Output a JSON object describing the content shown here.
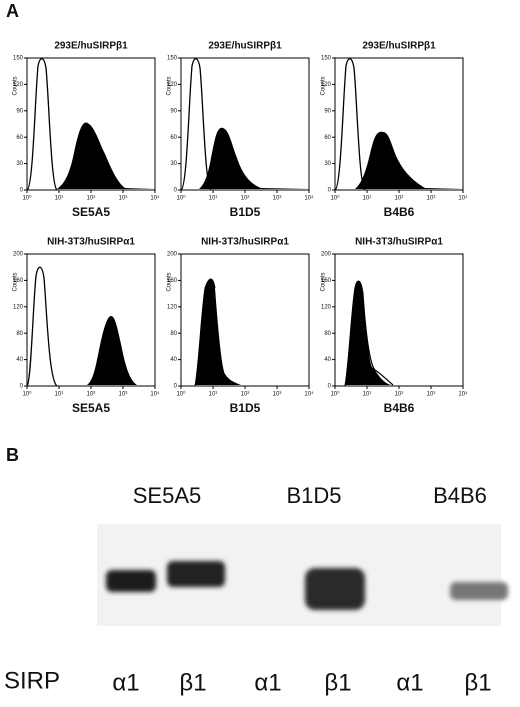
{
  "figure": {
    "panel_a_label": "A",
    "panel_b_label": "B",
    "histograms": [
      {
        "type": "histogram",
        "title": "293E/huSIRPβ1",
        "y_label": "Counts",
        "x_label": "SE5A5",
        "ylim": [
          0,
          150
        ],
        "yticks": [
          0,
          30,
          60,
          90,
          120,
          150
        ],
        "xlim": [
          1,
          10000
        ],
        "log_x": true,
        "xticks": [
          {
            "value": 1,
            "label": "10⁰"
          },
          {
            "value": 10,
            "label": "10¹"
          },
          {
            "value": 100,
            "label": "10²"
          },
          {
            "value": 1000,
            "label": "10³"
          },
          {
            "value": 10000,
            "label": "10⁴"
          }
        ]
      },
      {
        "type": "histogram",
        "title": "293E/huSIRPβ1",
        "y_label": "Counts",
        "x_label": "B1D5",
        "ylim": [
          0,
          150
        ],
        "yticks": [
          0,
          30,
          60,
          90,
          120,
          150
        ],
        "xlim": [
          1,
          10000
        ],
        "log_x": true,
        "xticks": [
          {
            "value": 1,
            "label": "10⁰"
          },
          {
            "value": 10,
            "label": "10¹"
          },
          {
            "value": 100,
            "label": "10²"
          },
          {
            "value": 1000,
            "label": "10³"
          },
          {
            "value": 10000,
            "label": "10⁴"
          }
        ]
      },
      {
        "type": "histogram",
        "title": "293E/huSIRPβ1",
        "y_label": "Counts",
        "x_label": "B4B6",
        "ylim": [
          0,
          150
        ],
        "yticks": [
          0,
          30,
          60,
          90,
          120,
          150
        ],
        "xlim": [
          1,
          10000
        ],
        "log_x": true,
        "xticks": [
          {
            "value": 1,
            "label": "10⁰"
          },
          {
            "value": 10,
            "label": "10¹"
          },
          {
            "value": 100,
            "label": "10²"
          },
          {
            "value": 1000,
            "label": "10³"
          },
          {
            "value": 10000,
            "label": "10⁴"
          }
        ]
      },
      {
        "type": "histogram",
        "title": "NIH-3T3/huSIRPα1",
        "y_label": "Counts",
        "x_label": "SE5A5",
        "ylim": [
          0,
          200
        ],
        "yticks": [
          0,
          40,
          80,
          120,
          160,
          200
        ],
        "xlim": [
          1,
          10000
        ],
        "log_x": true,
        "xticks": [
          {
            "value": 1,
            "label": "10⁰"
          },
          {
            "value": 10,
            "label": "10¹"
          },
          {
            "value": 100,
            "label": "10²"
          },
          {
            "value": 1000,
            "label": "10³"
          },
          {
            "value": 10000,
            "label": "10⁴"
          }
        ]
      },
      {
        "type": "histogram",
        "title": "NIH-3T3/huSIRPα1",
        "y_label": "Counts",
        "x_label": "B1D5",
        "ylim": [
          0,
          200
        ],
        "yticks": [
          0,
          40,
          80,
          120,
          160,
          200
        ],
        "xlim": [
          1,
          10000
        ],
        "log_x": true,
        "xticks": [
          {
            "value": 1,
            "label": "10⁰"
          },
          {
            "value": 10,
            "label": "10¹"
          },
          {
            "value": 100,
            "label": "10²"
          },
          {
            "value": 1000,
            "label": "10³"
          },
          {
            "value": 10000,
            "label": "10⁴"
          }
        ]
      },
      {
        "type": "histogram",
        "title": "NIH-3T3/huSIRPα1",
        "y_label": "Counts",
        "x_label": "B4B6",
        "ylim": [
          0,
          200
        ],
        "yticks": [
          0,
          40,
          80,
          120,
          160,
          200
        ],
        "xlim": [
          1,
          10000
        ],
        "log_x": true,
        "xticks": [
          {
            "value": 1,
            "label": "10⁰"
          },
          {
            "value": 10,
            "label": "10¹"
          },
          {
            "value": 100,
            "label": "10²"
          },
          {
            "value": 1000,
            "label": "10³"
          },
          {
            "value": 10000,
            "label": "10⁴"
          }
        ]
      }
    ],
    "blot": {
      "antibodies": [
        "SE5A5",
        "B1D5",
        "B4B6"
      ],
      "row_label": "SIRP",
      "lanes": [
        "α1",
        "β1",
        "α1",
        "β1",
        "α1",
        "β1"
      ]
    }
  }
}
